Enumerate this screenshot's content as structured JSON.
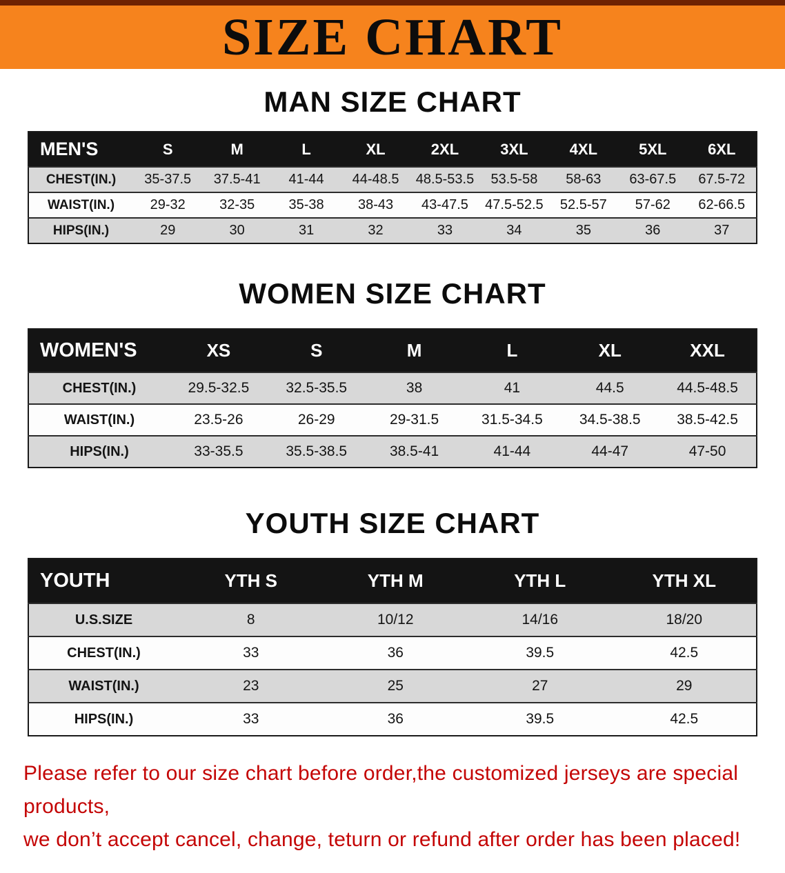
{
  "banner": {
    "title": "SIZE CHART"
  },
  "colors": {
    "banner_orange": "#f6831d",
    "banner_top_stripe": "#6e2202",
    "table_header_black": "#141414",
    "row_shaded_gray": "#d8d8d8",
    "notice_red": "#c40505"
  },
  "sections": [
    {
      "heading": "MAN SIZE CHART",
      "table": {
        "header": [
          "MEN'S",
          "S",
          "M",
          "L",
          "XL",
          "2XL",
          "3XL",
          "4XL",
          "5XL",
          "6XL"
        ],
        "rows": [
          [
            "CHEST(IN.)",
            "35-37.5",
            "37.5-41",
            "41-44",
            "44-48.5",
            "48.5-53.5",
            "53.5-58",
            "58-63",
            "63-67.5",
            "67.5-72"
          ],
          [
            "WAIST(IN.)",
            "29-32",
            "32-35",
            "35-38",
            "38-43",
            "43-47.5",
            "47.5-52.5",
            "52.5-57",
            "57-62",
            "62-66.5"
          ],
          [
            "HIPS(IN.)",
            "29",
            "30",
            "31",
            "32",
            "33",
            "34",
            "35",
            "36",
            "37"
          ]
        ]
      }
    },
    {
      "heading": "WOMEN SIZE CHART",
      "table": {
        "header": [
          "WOMEN'S",
          "XS",
          "S",
          "M",
          "L",
          "XL",
          "XXL"
        ],
        "rows": [
          [
            "CHEST(IN.)",
            "29.5-32.5",
            "32.5-35.5",
            "38",
            "41",
            "44.5",
            "44.5-48.5"
          ],
          [
            "WAIST(IN.)",
            "23.5-26",
            "26-29",
            "29-31.5",
            "31.5-34.5",
            "34.5-38.5",
            "38.5-42.5"
          ],
          [
            "HIPS(IN.)",
            "33-35.5",
            "35.5-38.5",
            "38.5-41",
            "41-44",
            "44-47",
            "47-50"
          ]
        ]
      }
    },
    {
      "heading": "YOUTH SIZE CHART",
      "table": {
        "header": [
          "YOUTH",
          "YTH S",
          "YTH M",
          "YTH L",
          "YTH XL"
        ],
        "rows": [
          [
            "U.S.SIZE",
            "8",
            "10/12",
            "14/16",
            "18/20"
          ],
          [
            "CHEST(IN.)",
            "33",
            "36",
            "39.5",
            "42.5"
          ],
          [
            "WAIST(IN.)",
            "23",
            "25",
            "27",
            "29"
          ],
          [
            "HIPS(IN.)",
            "33",
            "36",
            "39.5",
            "42.5"
          ]
        ]
      }
    }
  ],
  "footer": {
    "lines": [
      "Please refer to our size chart before order,the customized jerseys are special products,",
      "we don’t accept cancel, change, teturn or refund after order has been placed!"
    ]
  }
}
